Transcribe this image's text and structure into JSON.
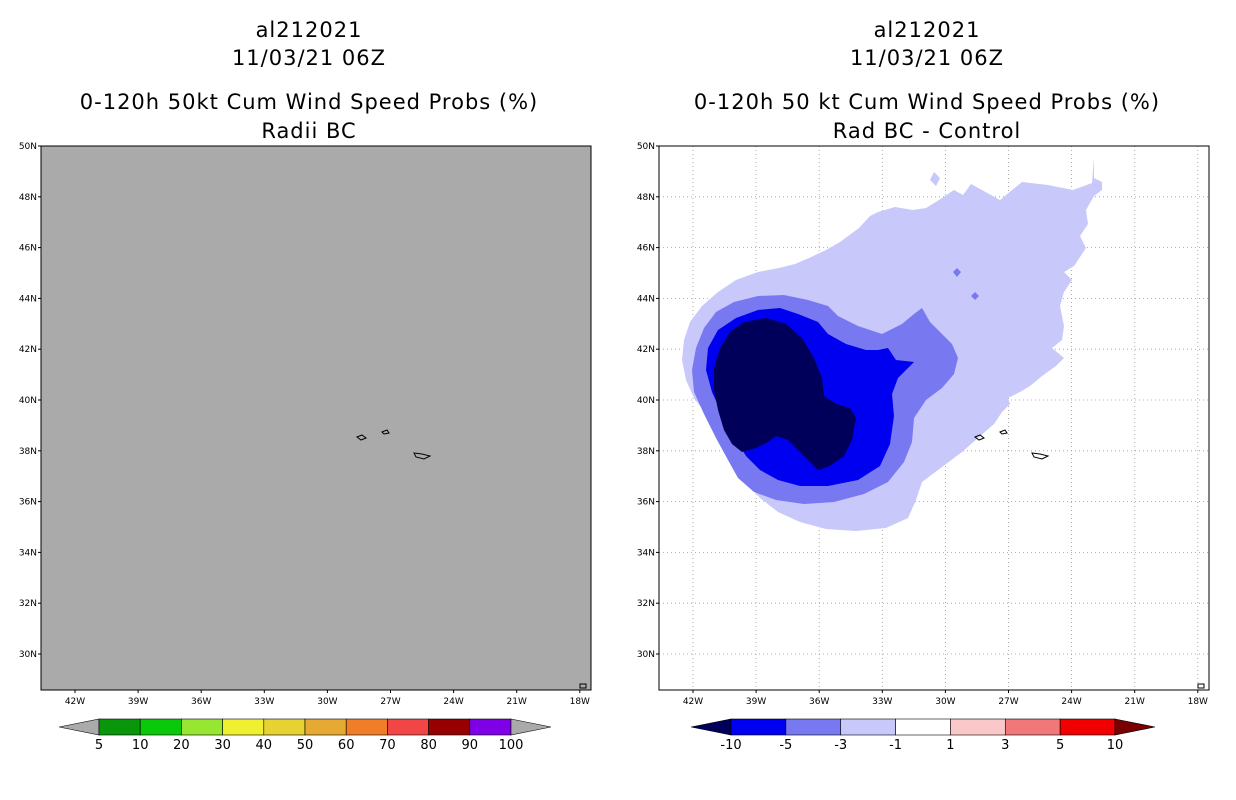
{
  "left_panel": {
    "storm_id": "al212021",
    "datetime": "11/03/21 06Z",
    "product_title": "0-120h 50kt Cum Wind Speed Probs (%)",
    "subtitle": "Radii BC",
    "field_color": "#aaaaaa",
    "lat_labels": [
      "50N",
      "48N",
      "46N",
      "44N",
      "42N",
      "40N",
      "38N",
      "36N",
      "34N",
      "32N",
      "30N"
    ],
    "lon_labels": [
      "42W",
      "39W",
      "36W",
      "33W",
      "30W",
      "27W",
      "24W",
      "21W",
      "18W"
    ],
    "colorbar": {
      "labels": [
        "5",
        "10",
        "20",
        "30",
        "40",
        "50",
        "60",
        "70",
        "80",
        "90",
        "100"
      ],
      "colors": [
        "#0a960a",
        "#0ac80a",
        "#96e632",
        "#f0f032",
        "#e6d232",
        "#e6aa32",
        "#f07d28",
        "#f04646",
        "#960000",
        "#7f00e6"
      ],
      "end_color": "#aaaaaa"
    }
  },
  "right_panel": {
    "storm_id": "al212021",
    "datetime": "11/03/21 06Z",
    "product_title": "0-120h 50 kt Cum Wind Speed Probs (%)",
    "subtitle": "Rad BC - Control",
    "lat_labels": [
      "50N",
      "48N",
      "46N",
      "44N",
      "42N",
      "40N",
      "38N",
      "36N",
      "34N",
      "32N",
      "30N"
    ],
    "lon_labels": [
      "42W",
      "39W",
      "36W",
      "33W",
      "30W",
      "27W",
      "24W",
      "21W",
      "18W"
    ],
    "shading_colors": {
      "minus_1_to_3": "#c8c8fa",
      "minus_3_to_5": "#7878f0",
      "minus_5_to_10": "#0000f0",
      "below_minus_10": "#00005a"
    },
    "colorbar": {
      "labels": [
        "-10",
        "-5",
        "-3",
        "-1",
        "1",
        "3",
        "5",
        "10"
      ],
      "colors": [
        "#0000f0",
        "#7878f0",
        "#c8c8fa",
        "#ffffff",
        "#fac8c8",
        "#f07878",
        "#f00000"
      ],
      "low_end_color": "#00005a",
      "high_end_color": "#780000"
    }
  }
}
